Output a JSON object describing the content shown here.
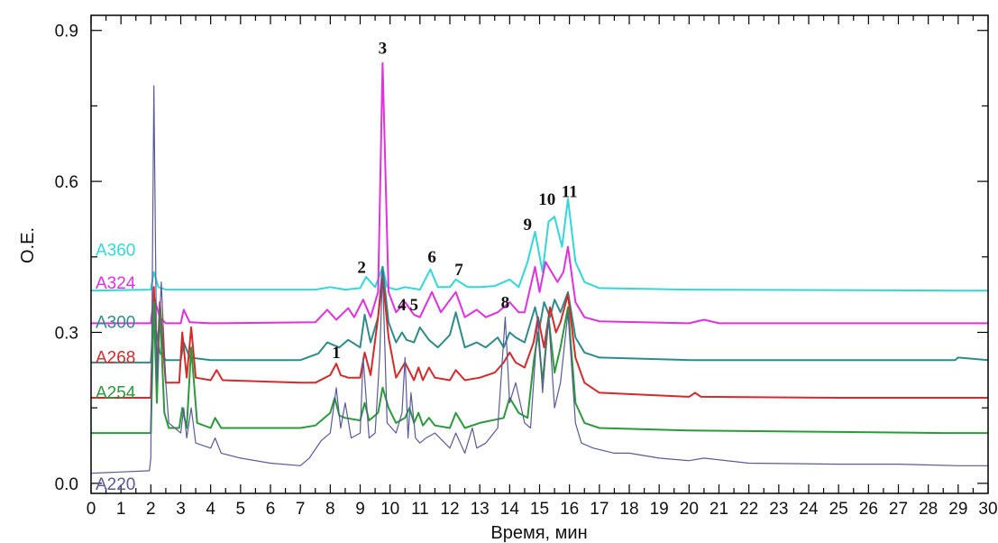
{
  "chart_data": {
    "type": "line",
    "title": "",
    "xlabel": "Время, мин",
    "ylabel": "О.Е.",
    "xlim": [
      0,
      30
    ],
    "ylim": [
      -0.02,
      0.93
    ],
    "x_ticks": [
      0,
      1,
      2,
      3,
      4,
      5,
      6,
      7,
      8,
      9,
      10,
      11,
      12,
      13,
      14,
      15,
      16,
      17,
      18,
      19,
      20,
      21,
      22,
      23,
      24,
      25,
      26,
      27,
      28,
      29,
      30
    ],
    "x_tick_labels": [
      "0",
      "1",
      "2",
      "3",
      "4",
      "5",
      "6",
      "7",
      "8",
      "9",
      "10",
      "11",
      "12",
      "13",
      "14",
      "15",
      "16",
      "17",
      "18",
      "19",
      "20",
      "21",
      "22",
      "23",
      "24",
      "25",
      "26",
      "27",
      "28",
      "29",
      "30"
    ],
    "y_ticks": [
      0.0,
      0.3,
      0.6,
      0.9
    ],
    "y_tick_labels": [
      "0.0",
      "0.3",
      "0.6",
      "0.9"
    ],
    "grid": false,
    "legend": "inline-left",
    "series": [
      {
        "name": "A360",
        "color": "#30d8d8",
        "x": [
          0,
          2.0,
          2.1,
          2.25,
          2.5,
          3,
          7.5,
          8,
          8.5,
          9,
          9.2,
          9.5,
          9.75,
          9.9,
          10.2,
          10.5,
          11,
          11.35,
          11.6,
          12,
          12.2,
          12.6,
          13,
          13.5,
          14,
          14.3,
          14.6,
          14.85,
          15.1,
          15.3,
          15.5,
          15.75,
          15.95,
          16.2,
          16.5,
          17,
          20,
          25,
          29,
          30
        ],
        "y": [
          0.383,
          0.385,
          0.42,
          0.39,
          0.385,
          0.385,
          0.385,
          0.39,
          0.385,
          0.388,
          0.41,
          0.39,
          0.43,
          0.39,
          0.385,
          0.39,
          0.385,
          0.425,
          0.39,
          0.39,
          0.405,
          0.39,
          0.39,
          0.392,
          0.405,
          0.39,
          0.44,
          0.5,
          0.42,
          0.52,
          0.53,
          0.47,
          0.565,
          0.44,
          0.4,
          0.388,
          0.385,
          0.384,
          0.383,
          0.383
        ]
      },
      {
        "name": "A324",
        "color": "#e030e0",
        "x": [
          0,
          2.0,
          2.1,
          2.3,
          2.5,
          3.0,
          3.1,
          3.3,
          4,
          7.5,
          7.9,
          8.2,
          8.6,
          8.8,
          9.1,
          9.35,
          9.6,
          9.75,
          9.95,
          10.2,
          10.5,
          10.8,
          11.0,
          11.4,
          11.7,
          12.2,
          12.5,
          12.9,
          13.2,
          13.6,
          14.0,
          14.3,
          14.5,
          14.85,
          15.0,
          15.2,
          15.4,
          15.6,
          15.8,
          15.95,
          16.2,
          16.5,
          17,
          20,
          20.5,
          21,
          25,
          29,
          30
        ],
        "y": [
          0.318,
          0.318,
          0.37,
          0.33,
          0.318,
          0.318,
          0.345,
          0.32,
          0.318,
          0.32,
          0.345,
          0.325,
          0.348,
          0.33,
          0.365,
          0.33,
          0.38,
          0.835,
          0.38,
          0.34,
          0.36,
          0.335,
          0.33,
          0.38,
          0.34,
          0.38,
          0.33,
          0.345,
          0.33,
          0.34,
          0.36,
          0.34,
          0.34,
          0.43,
          0.38,
          0.44,
          0.42,
          0.4,
          0.42,
          0.47,
          0.36,
          0.33,
          0.322,
          0.318,
          0.325,
          0.318,
          0.318,
          0.318,
          0.318
        ]
      },
      {
        "name": "A300",
        "color": "#2e8b8b",
        "x": [
          0,
          2.0,
          2.1,
          2.3,
          2.5,
          3.0,
          3.1,
          3.3,
          4,
          7,
          7.6,
          7.9,
          8.3,
          8.6,
          9.0,
          9.15,
          9.35,
          9.6,
          9.75,
          9.95,
          10.2,
          10.4,
          10.55,
          10.8,
          11.0,
          11.3,
          11.6,
          12.0,
          12.2,
          12.5,
          12.9,
          13.2,
          13.6,
          13.8,
          14.0,
          14.2,
          14.5,
          14.85,
          15.0,
          15.15,
          15.35,
          15.5,
          15.7,
          15.95,
          16.2,
          16.5,
          17,
          20,
          25,
          28.9,
          29,
          30
        ],
        "y": [
          0.24,
          0.24,
          0.33,
          0.26,
          0.245,
          0.245,
          0.28,
          0.25,
          0.245,
          0.245,
          0.258,
          0.28,
          0.27,
          0.285,
          0.27,
          0.335,
          0.28,
          0.33,
          0.43,
          0.32,
          0.28,
          0.3,
          0.285,
          0.28,
          0.31,
          0.285,
          0.27,
          0.295,
          0.34,
          0.27,
          0.28,
          0.27,
          0.29,
          0.27,
          0.3,
          0.29,
          0.28,
          0.35,
          0.31,
          0.36,
          0.33,
          0.365,
          0.34,
          0.38,
          0.29,
          0.26,
          0.25,
          0.245,
          0.245,
          0.245,
          0.25,
          0.245
        ]
      },
      {
        "name": "A268",
        "color": "#d42a2a",
        "x": [
          0,
          2.0,
          2.1,
          2.2,
          2.3,
          2.5,
          2.95,
          3.05,
          3.2,
          3.35,
          3.5,
          4,
          4.2,
          4.4,
          7,
          7.5,
          8.0,
          8.2,
          8.35,
          8.6,
          9.0,
          9.15,
          9.35,
          9.6,
          9.75,
          9.95,
          10.2,
          10.5,
          10.8,
          10.95,
          11.1,
          11.3,
          11.5,
          12.0,
          12.2,
          12.5,
          13.0,
          13.5,
          13.8,
          14.0,
          14.2,
          14.5,
          14.8,
          14.95,
          15.15,
          15.35,
          15.55,
          15.7,
          15.95,
          16.2,
          16.5,
          17,
          20,
          20.2,
          20.4,
          25,
          29,
          30
        ],
        "y": [
          0.17,
          0.17,
          0.39,
          0.22,
          0.36,
          0.2,
          0.2,
          0.3,
          0.21,
          0.31,
          0.21,
          0.205,
          0.225,
          0.205,
          0.2,
          0.2,
          0.215,
          0.238,
          0.215,
          0.21,
          0.21,
          0.26,
          0.215,
          0.33,
          0.41,
          0.29,
          0.21,
          0.24,
          0.205,
          0.23,
          0.205,
          0.23,
          0.21,
          0.205,
          0.225,
          0.205,
          0.21,
          0.22,
          0.24,
          0.26,
          0.24,
          0.23,
          0.28,
          0.33,
          0.27,
          0.35,
          0.3,
          0.32,
          0.375,
          0.25,
          0.2,
          0.18,
          0.172,
          0.18,
          0.172,
          0.17,
          0.17,
          0.17
        ]
      },
      {
        "name": "A254",
        "color": "#2a9a3a",
        "x": [
          0,
          2.0,
          2.1,
          2.2,
          2.3,
          2.45,
          2.6,
          2.95,
          3.05,
          3.2,
          3.35,
          3.55,
          4.0,
          4.15,
          4.35,
          7,
          7.5,
          8.0,
          8.15,
          8.3,
          8.5,
          9.0,
          9.15,
          9.3,
          9.6,
          9.75,
          9.95,
          10.2,
          10.5,
          10.65,
          10.8,
          10.95,
          11.1,
          11.3,
          11.5,
          12.0,
          12.2,
          12.5,
          13.0,
          13.8,
          14.0,
          14.3,
          14.6,
          14.8,
          14.95,
          15.1,
          15.3,
          15.5,
          15.7,
          15.95,
          16.2,
          16.5,
          17,
          20,
          25,
          28.5,
          29,
          30
        ],
        "y": [
          0.1,
          0.1,
          0.36,
          0.16,
          0.35,
          0.14,
          0.11,
          0.11,
          0.15,
          0.11,
          0.27,
          0.12,
          0.11,
          0.13,
          0.11,
          0.11,
          0.115,
          0.14,
          0.17,
          0.135,
          0.13,
          0.125,
          0.16,
          0.125,
          0.14,
          0.19,
          0.15,
          0.12,
          0.13,
          0.15,
          0.12,
          0.14,
          0.115,
          0.13,
          0.115,
          0.11,
          0.14,
          0.11,
          0.12,
          0.13,
          0.17,
          0.14,
          0.13,
          0.24,
          0.3,
          0.2,
          0.33,
          0.22,
          0.27,
          0.35,
          0.16,
          0.12,
          0.11,
          0.105,
          0.102,
          0.1,
          0.1,
          0.1
        ]
      },
      {
        "name": "A220",
        "color": "#5a5a9a",
        "x": [
          0,
          1.95,
          2.0,
          2.1,
          2.2,
          2.35,
          2.5,
          2.6,
          2.8,
          3.0,
          3.1,
          3.2,
          3.35,
          3.5,
          4,
          4.15,
          4.35,
          5,
          6,
          7,
          7.3,
          7.7,
          8.0,
          8.2,
          8.35,
          8.5,
          8.7,
          9.0,
          9.1,
          9.3,
          9.5,
          9.65,
          9.75,
          9.9,
          10.2,
          10.4,
          10.5,
          10.6,
          10.7,
          10.85,
          11.0,
          11.2,
          11.5,
          12.0,
          12.2,
          12.5,
          12.75,
          12.9,
          13.2,
          13.6,
          13.85,
          14.0,
          14.2,
          14.5,
          14.7,
          14.95,
          15.1,
          15.3,
          15.5,
          15.7,
          15.95,
          16.2,
          16.4,
          16.8,
          17.5,
          18,
          19,
          20,
          20.5,
          22,
          25,
          27,
          29,
          30
        ],
        "y": [
          0.02,
          0.025,
          0.05,
          0.79,
          0.2,
          0.4,
          0.2,
          0.12,
          0.11,
          0.1,
          0.15,
          0.09,
          0.15,
          0.08,
          0.07,
          0.09,
          0.06,
          0.05,
          0.04,
          0.035,
          0.05,
          0.085,
          0.1,
          0.19,
          0.11,
          0.16,
          0.09,
          0.1,
          0.25,
          0.09,
          0.1,
          0.25,
          0.42,
          0.12,
          0.1,
          0.14,
          0.25,
          0.09,
          0.18,
          0.09,
          0.08,
          0.09,
          0.1,
          0.07,
          0.1,
          0.06,
          0.11,
          0.07,
          0.08,
          0.11,
          0.33,
          0.16,
          0.2,
          0.12,
          0.11,
          0.33,
          0.18,
          0.33,
          0.15,
          0.2,
          0.34,
          0.12,
          0.08,
          0.07,
          0.06,
          0.06,
          0.05,
          0.045,
          0.05,
          0.04,
          0.038,
          0.038,
          0.035,
          0.035
        ]
      }
    ],
    "peak_labels": [
      {
        "text": "1",
        "x": 8.2,
        "y": 0.245
      },
      {
        "text": "2",
        "x": 9.05,
        "y": 0.415
      },
      {
        "text": "3",
        "x": 9.75,
        "y": 0.85
      },
      {
        "text": "4",
        "x": 10.4,
        "y": 0.34
      },
      {
        "text": "5",
        "x": 10.8,
        "y": 0.34
      },
      {
        "text": "6",
        "x": 11.4,
        "y": 0.435
      },
      {
        "text": "7",
        "x": 12.3,
        "y": 0.41
      },
      {
        "text": "8",
        "x": 13.85,
        "y": 0.345
      },
      {
        "text": "9",
        "x": 14.6,
        "y": 0.5
      },
      {
        "text": "10",
        "x": 15.25,
        "y": 0.55
      },
      {
        "text": "11",
        "x": 16.0,
        "y": 0.565
      }
    ]
  }
}
